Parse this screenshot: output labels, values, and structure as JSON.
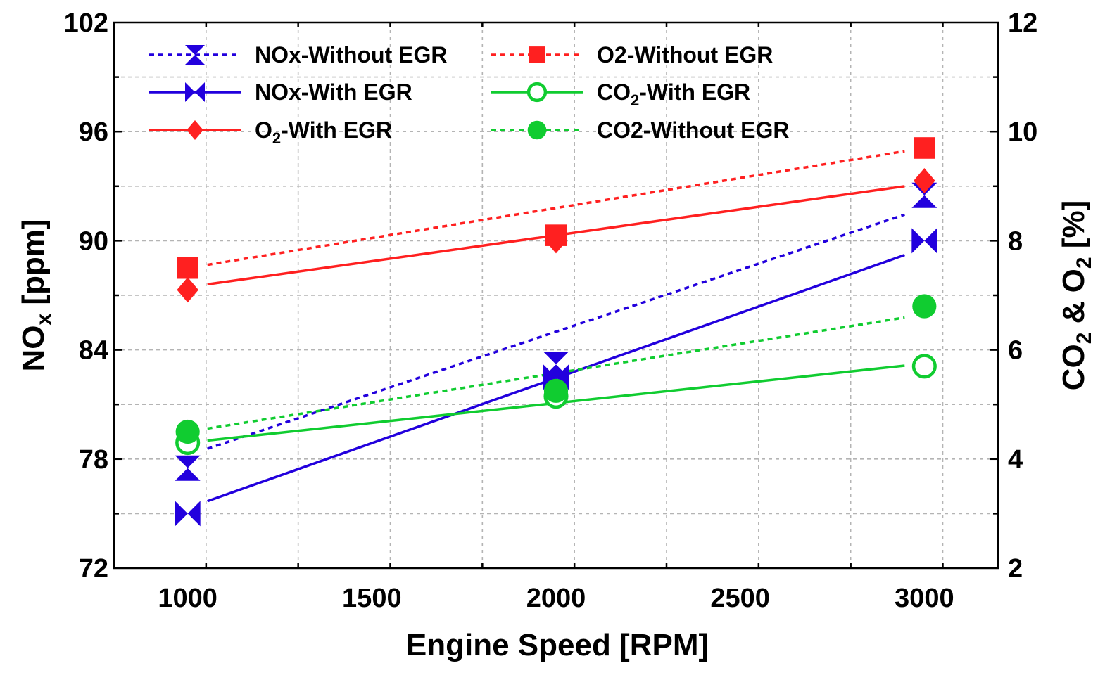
{
  "chart_data": {
    "type": "line",
    "title": "",
    "xlabel": "Engine Speed [RPM]",
    "ylabel_left": "NOx [ppm]",
    "ylabel_right": "CO2 & O2  [%]",
    "x": [
      1000,
      2000,
      3000
    ],
    "x_ticks": [
      1000,
      1500,
      2000,
      2500,
      3000
    ],
    "xlim": [
      800,
      3200
    ],
    "ylim_left": [
      72,
      102
    ],
    "y_ticks_left": [
      72,
      78,
      84,
      90,
      96,
      102
    ],
    "ylim_right": [
      2,
      12
    ],
    "y_ticks_right": [
      2,
      4,
      6,
      8,
      10,
      12
    ],
    "grid": true,
    "legend_position": "top-left",
    "series": [
      {
        "name": "NOx-Without EGR",
        "name_main": "NOx-Without EGR",
        "name_sub": "",
        "name_tail": "",
        "axis": "left",
        "color": "#2200dd",
        "dash": "dashed",
        "marker": "hourglass",
        "fit": [
          78.2,
          91.8
        ],
        "values": [
          77.5,
          83.2,
          92.5
        ]
      },
      {
        "name": "NOx-With EGR",
        "name_main": "NOx-With EGR",
        "name_sub": "",
        "name_tail": "",
        "axis": "left",
        "color": "#2200dd",
        "dash": "solid",
        "marker": "bowtie",
        "fit": [
          75.3,
          89.6
        ],
        "values": [
          75.0,
          82.5,
          90.0
        ]
      },
      {
        "name": "O2-With EGR",
        "name_main": "O",
        "name_sub": "2",
        "name_tail": "-With EGR",
        "axis": "right",
        "color": "#ff2020",
        "dash": "solid",
        "marker": "diamond",
        "fit": [
          7.15,
          9.05
        ],
        "values": [
          7.1,
          8.0,
          9.1
        ]
      },
      {
        "name": "O2-Without EGR",
        "name_main": "O2-Without EGR",
        "name_sub": "",
        "name_tail": "",
        "axis": "right",
        "color": "#ff2020",
        "dash": "dashed",
        "marker": "square",
        "fit": [
          7.5,
          9.7
        ],
        "values": [
          7.5,
          8.1,
          9.7
        ]
      },
      {
        "name": "CO2-With EGR",
        "name_main": "CO",
        "name_sub": "2",
        "name_tail": "-With EGR",
        "axis": "right",
        "color": "#10cc30",
        "dash": "solid",
        "marker": "open-circle",
        "fit": [
          4.3,
          5.75
        ],
        "values": [
          4.3,
          5.15,
          5.7
        ]
      },
      {
        "name": "CO2-Without EGR",
        "name_main": "CO2-Without EGR",
        "name_sub": "",
        "name_tail": "",
        "axis": "right",
        "color": "#10cc30",
        "dash": "dashed",
        "marker": "filled-circle",
        "fit": [
          4.5,
          6.65
        ],
        "values": [
          4.5,
          5.25,
          6.8
        ]
      }
    ]
  }
}
